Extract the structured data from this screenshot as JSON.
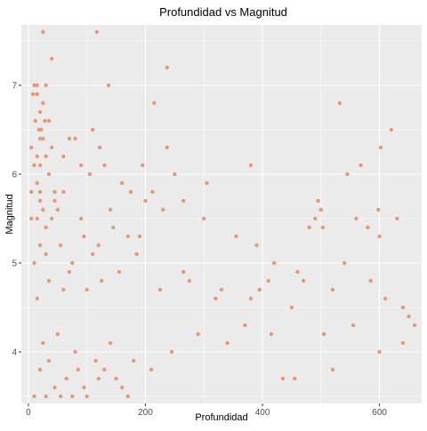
{
  "chart_data": {
    "type": "scatter",
    "title": "Profundidad vs Magnitud",
    "xlabel": "Profundidad",
    "ylabel": "Magnitud",
    "xlim": [
      -12,
      672
    ],
    "ylim": [
      3.42,
      7.68
    ],
    "x_ticks": [
      0,
      200,
      400,
      600
    ],
    "x_tick_labels": [
      "0",
      "200",
      "400",
      "600"
    ],
    "y_ticks": [
      4,
      5,
      6,
      7
    ],
    "y_tick_labels": [
      "4",
      "5",
      "6",
      "7"
    ],
    "grid": true,
    "point_color": "#E9967A",
    "panel_background": "#EBEBEB",
    "grid_color": "#FFFFFF",
    "points": [
      [
        25,
        7.6
      ],
      [
        117,
        7.6
      ],
      [
        40,
        7.3
      ],
      [
        237,
        7.2
      ],
      [
        10,
        7.0
      ],
      [
        30,
        7.0
      ],
      [
        137,
        7.0
      ],
      [
        8,
        6.9
      ],
      [
        15,
        6.9
      ],
      [
        215,
        6.8
      ],
      [
        532,
        6.8
      ],
      [
        20,
        6.7
      ],
      [
        28,
        6.6
      ],
      [
        35,
        6.6
      ],
      [
        12,
        6.6
      ],
      [
        18,
        6.5
      ],
      [
        22,
        6.5
      ],
      [
        110,
        6.5
      ],
      [
        620,
        6.5
      ],
      [
        25,
        6.4
      ],
      [
        70,
        6.4
      ],
      [
        80,
        6.4
      ],
      [
        40,
        6.3
      ],
      [
        122,
        6.3
      ],
      [
        237,
        6.3
      ],
      [
        602,
        6.3
      ],
      [
        15,
        6.2
      ],
      [
        60,
        6.2
      ],
      [
        20,
        6.1
      ],
      [
        90,
        6.1
      ],
      [
        130,
        6.1
      ],
      [
        195,
        6.1
      ],
      [
        380,
        6.1
      ],
      [
        568,
        6.1
      ],
      [
        250,
        6.0
      ],
      [
        545,
        6.0
      ],
      [
        105,
        6.0
      ],
      [
        160,
        5.9
      ],
      [
        305,
        5.9
      ],
      [
        20,
        5.8
      ],
      [
        45,
        5.8
      ],
      [
        60,
        5.8
      ],
      [
        5,
        5.8
      ],
      [
        175,
        5.8
      ],
      [
        212,
        5.8
      ],
      [
        200,
        5.7
      ],
      [
        265,
        5.7
      ],
      [
        495,
        5.7
      ],
      [
        20,
        5.7
      ],
      [
        50,
        5.6
      ],
      [
        140,
        5.6
      ],
      [
        230,
        5.6
      ],
      [
        500,
        5.6
      ],
      [
        598,
        5.6
      ],
      [
        15,
        5.5
      ],
      [
        40,
        5.5
      ],
      [
        90,
        5.5
      ],
      [
        300,
        5.5
      ],
      [
        490,
        5.5
      ],
      [
        560,
        5.5
      ],
      [
        630,
        5.5
      ],
      [
        480,
        5.4
      ],
      [
        503,
        5.4
      ],
      [
        580,
        5.4
      ],
      [
        30,
        5.4
      ],
      [
        190,
        5.3
      ],
      [
        355,
        5.3
      ],
      [
        390,
        5.2
      ],
      [
        600,
        5.3
      ],
      [
        20,
        5.2
      ],
      [
        110,
        5.1
      ],
      [
        185,
        5.1
      ],
      [
        420,
        5.0
      ],
      [
        540,
        5.0
      ],
      [
        265,
        4.9
      ],
      [
        460,
        4.9
      ],
      [
        410,
        4.8
      ],
      [
        60,
        4.7
      ],
      [
        320,
        4.6
      ],
      [
        380,
        4.6
      ],
      [
        450,
        4.5
      ],
      [
        640,
        4.5
      ],
      [
        650,
        4.4
      ],
      [
        660,
        4.3
      ],
      [
        640,
        4.1
      ],
      [
        600,
        4.0
      ],
      [
        520,
        3.8
      ],
      [
        455,
        3.7
      ],
      [
        435,
        3.7
      ],
      [
        120,
        3.7
      ],
      [
        160,
        3.6
      ],
      [
        170,
        3.5
      ],
      [
        10,
        3.5
      ],
      [
        30,
        3.5
      ],
      [
        55,
        3.5
      ],
      [
        75,
        3.5
      ],
      [
        100,
        3.5
      ],
      [
        20,
        3.8
      ],
      [
        35,
        3.9
      ],
      [
        45,
        3.6
      ],
      [
        65,
        3.7
      ],
      [
        85,
        3.8
      ],
      [
        95,
        3.6
      ],
      [
        115,
        3.9
      ],
      [
        130,
        3.8
      ],
      [
        150,
        3.7
      ],
      [
        180,
        3.9
      ],
      [
        210,
        3.8
      ],
      [
        25,
        4.1
      ],
      [
        50,
        4.2
      ],
      [
        80,
        4.0
      ],
      [
        140,
        4.1
      ],
      [
        245,
        4.0
      ],
      [
        290,
        4.2
      ],
      [
        340,
        4.1
      ],
      [
        370,
        4.3
      ],
      [
        415,
        4.2
      ],
      [
        505,
        4.2
      ],
      [
        555,
        4.3
      ],
      [
        15,
        4.6
      ],
      [
        35,
        4.8
      ],
      [
        70,
        4.9
      ],
      [
        100,
        4.7
      ],
      [
        125,
        4.8
      ],
      [
        155,
        4.9
      ],
      [
        225,
        4.7
      ],
      [
        275,
        4.8
      ],
      [
        330,
        4.7
      ],
      [
        395,
        4.7
      ],
      [
        470,
        4.8
      ],
      [
        520,
        4.7
      ],
      [
        585,
        4.8
      ],
      [
        610,
        4.6
      ],
      [
        10,
        5.0
      ],
      [
        30,
        5.1
      ],
      [
        55,
        5.2
      ],
      [
        75,
        5.0
      ],
      [
        95,
        5.3
      ],
      [
        120,
        5.2
      ],
      [
        145,
        5.4
      ],
      [
        170,
        5.3
      ],
      [
        5,
        5.5
      ],
      [
        25,
        5.6
      ],
      [
        45,
        5.7
      ],
      [
        15,
        5.9
      ],
      [
        35,
        6.0
      ],
      [
        10,
        6.1
      ],
      [
        30,
        6.2
      ],
      [
        5,
        6.3
      ],
      [
        20,
        6.4
      ],
      [
        25,
        6.8
      ],
      [
        15,
        7.0
      ]
    ]
  }
}
